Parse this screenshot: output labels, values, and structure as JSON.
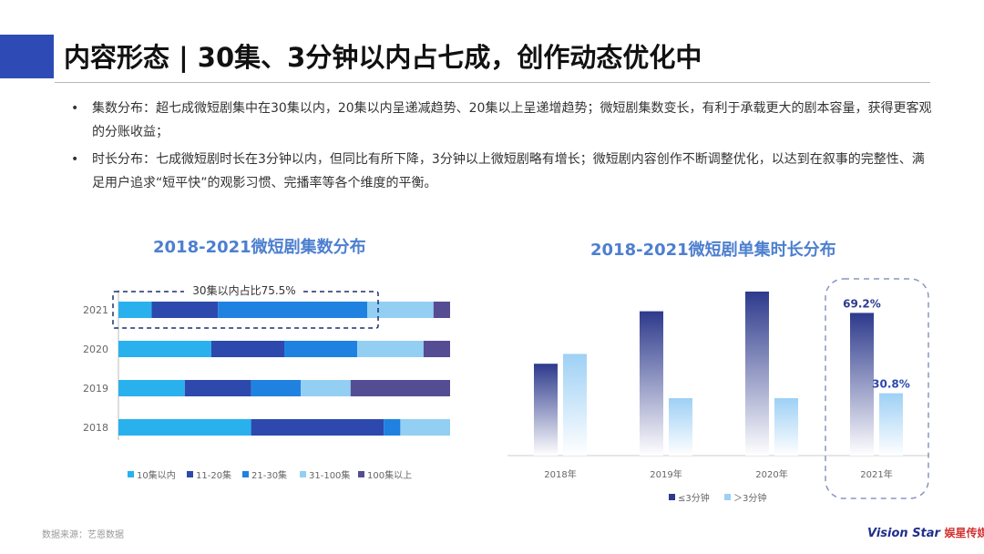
{
  "title": "内容形态 | 30集、3分钟以内占七成，创作动态优化中",
  "bullets": [
    "集数分布：超七成微短剧集中在30集以内，20集以内呈递减趋势、20集以上呈递增趋势；微短剧集数变长，有利于承载更大的剧本容量，获得更客观的分账收益；",
    "时长分布：七成微短剧时长在3分钟以内，但同比有所下降，3分钟以上微短剧略有增长；微短剧内容创作不断调整优化，以达到在叙事的完整性、满足用户追求“短平快”的观影习惯、完播率等各个维度的平衡。"
  ],
  "bullet_marker": "•",
  "footer": {
    "source": "数据来源：艺恩数据"
  },
  "brand": {
    "logo_text": "Vision Star",
    "cn_text": "娱星传媒"
  },
  "chart_data": [
    {
      "type": "bar",
      "orientation": "horizontal",
      "stacked": true,
      "title": "2018-2021微短剧集数分布",
      "categories": [
        "2021",
        "2020",
        "2019",
        "2018"
      ],
      "series": [
        {
          "name": "10集以内",
          "color": "#29b1ee",
          "values": [
            10,
            28,
            20,
            40
          ]
        },
        {
          "name": "11-20集",
          "color": "#2d49ad",
          "values": [
            20,
            22,
            20,
            40
          ]
        },
        {
          "name": "21-30集",
          "color": "#1f82e0",
          "values": [
            45,
            22,
            15,
            5
          ]
        },
        {
          "name": "31-100集",
          "color": "#93cff3",
          "values": [
            20,
            20,
            15,
            15
          ]
        },
        {
          "name": "100集以上",
          "color": "#544d93",
          "values": [
            5,
            8,
            30,
            0
          ]
        }
      ],
      "xlim": [
        0,
        100
      ],
      "legend": "bottom",
      "annotation": "30集以内占比75.5%"
    },
    {
      "type": "bar",
      "title": "2018-2021微短剧单集时长分布",
      "categories": [
        "2018年",
        "2019年",
        "2020年",
        "2021年"
      ],
      "series": [
        {
          "name": "≤3分钟",
          "color": "#2d3a8c",
          "values": [
            56,
            88,
            100,
            87
          ]
        },
        {
          "name": "＞3分钟",
          "color": "#9ed0f5",
          "values": [
            62,
            35,
            35,
            38
          ]
        }
      ],
      "data_labels": {
        "3": [
          "69.2%",
          "30.8%"
        ]
      },
      "highlight_category": "2021年",
      "legend": "bottom"
    }
  ]
}
